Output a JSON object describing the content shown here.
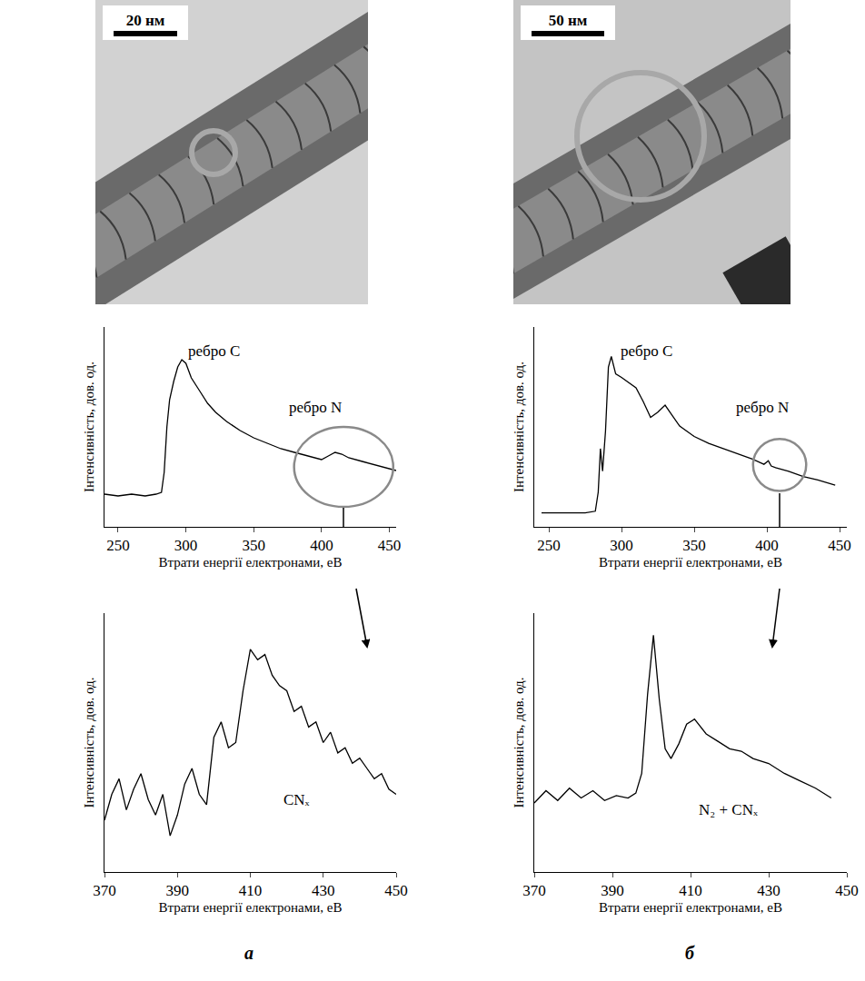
{
  "chart_data": [
    {
      "type": "line",
      "x_label": "Втрати енергії електронами, еВ",
      "y_label": "Інтенсивність, дов. од.",
      "x": [
        240,
        250,
        260,
        270,
        278,
        282,
        284,
        286,
        288,
        291,
        294,
        297,
        300,
        304,
        310,
        316,
        322,
        330,
        340,
        350,
        360,
        370,
        380,
        390,
        400,
        405,
        410,
        415,
        420,
        430,
        440,
        450,
        455
      ],
      "values": [
        18,
        17,
        18,
        17,
        18,
        19,
        30,
        55,
        70,
        80,
        88,
        92,
        90,
        82,
        75,
        68,
        63,
        58,
        53,
        49,
        46,
        43,
        41,
        39,
        37,
        39,
        41,
        40,
        38,
        36,
        34,
        32,
        31
      ],
      "xlim": [
        240,
        455
      ],
      "ylim": [
        0,
        110
      ],
      "xticks": [
        250,
        300,
        350,
        400,
        450
      ],
      "tick_labels": "x",
      "color": "#000000",
      "annotations": [
        {
          "text": "ребро C"
        },
        {
          "text": "ребро N"
        }
      ]
    },
    {
      "type": "line",
      "x_label": "Втрати енергії електронами, еВ",
      "y_label": "Інтенсивність, дов. од.",
      "x": [
        245,
        260,
        275,
        282,
        284,
        285.5,
        287,
        289,
        291,
        293,
        296,
        300,
        305,
        310,
        315,
        320,
        325,
        330,
        335,
        340,
        350,
        360,
        370,
        380,
        390,
        398,
        401,
        403,
        406,
        415,
        425,
        435,
        447
      ],
      "values": [
        8,
        8,
        8,
        9,
        20,
        45,
        32,
        55,
        92,
        98,
        88,
        86,
        83,
        80,
        72,
        63,
        66,
        70,
        64,
        58,
        52,
        48,
        45,
        42,
        39,
        36,
        38,
        35,
        34,
        32,
        29,
        27,
        24
      ],
      "xlim": [
        240,
        455
      ],
      "ylim": [
        0,
        115
      ],
      "xticks": [
        250,
        300,
        350,
        400,
        450
      ],
      "tick_labels": "x",
      "color": "#000000",
      "annotations": [
        {
          "text": "ребро C"
        },
        {
          "text": "ребро N"
        }
      ]
    },
    {
      "type": "line",
      "x_label": "Втрати енергії електронами, еВ",
      "y_label": "Інтенсивність, дов. од.",
      "x": [
        370,
        372,
        374,
        376,
        378,
        380,
        382,
        384,
        386,
        388,
        390,
        392,
        394,
        396,
        398,
        400,
        402,
        404,
        406,
        408,
        410,
        412,
        414,
        416,
        418,
        420,
        422,
        424,
        426,
        428,
        430,
        432,
        434,
        436,
        438,
        440,
        442,
        444,
        446,
        448,
        450
      ],
      "values": [
        20,
        30,
        36,
        24,
        32,
        38,
        28,
        22,
        30,
        14,
        22,
        34,
        40,
        30,
        26,
        52,
        58,
        48,
        50,
        70,
        86,
        82,
        84,
        76,
        72,
        70,
        62,
        64,
        56,
        58,
        50,
        54,
        46,
        48,
        42,
        44,
        40,
        36,
        38,
        32,
        30
      ],
      "xlim": [
        370,
        450
      ],
      "ylim": [
        0,
        100
      ],
      "xticks": [
        370,
        390,
        410,
        430,
        450
      ],
      "tick_labels": "x",
      "color": "#000000",
      "annotations": [
        {
          "text": "CNₓ"
        }
      ]
    },
    {
      "type": "line",
      "x_label": "Втрати енергії електронами, еВ",
      "y_label": "Інтенсивність, дов. од.",
      "x": [
        370,
        373,
        376,
        379,
        382,
        385,
        388,
        391,
        394,
        396,
        397.5,
        399,
        400.5,
        402,
        403.5,
        405,
        407,
        409,
        411,
        414,
        417,
        420,
        423,
        426,
        430,
        434,
        438,
        442,
        446
      ],
      "values": [
        28,
        33,
        29,
        34,
        30,
        33,
        29,
        31,
        30,
        32,
        40,
        72,
        96,
        70,
        50,
        46,
        52,
        60,
        62,
        56,
        53,
        50,
        49,
        46,
        44,
        40,
        37,
        34,
        30
      ],
      "xlim": [
        370,
        450
      ],
      "ylim": [
        0,
        105
      ],
      "xticks": [
        370,
        390,
        410,
        430,
        450
      ],
      "tick_labels": "x",
      "color": "#000000",
      "annotations": [
        {
          "text": "N₂ + CNₓ"
        }
      ]
    }
  ],
  "images": [
    {
      "scale_bar": "20 нм"
    },
    {
      "scale_bar": "50 нм"
    }
  ],
  "panel_labels": [
    "а",
    "б"
  ]
}
